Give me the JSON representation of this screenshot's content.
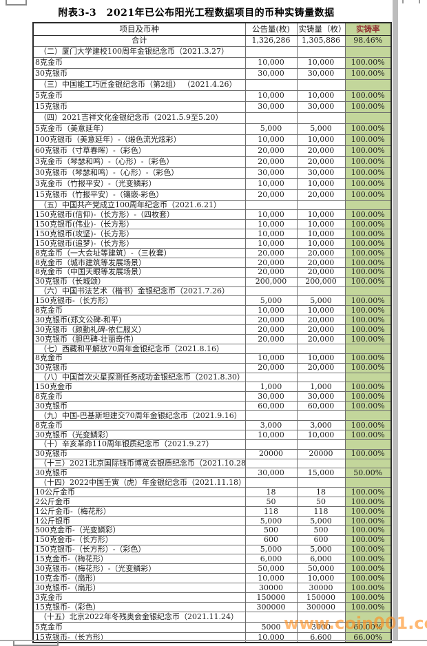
{
  "title": "附表3-3　2021年已公布阳光工程数据项目的币种实铸量数据",
  "watermark": "www.coin001.com",
  "colors": {
    "rate_column_bg": "#c3d69b",
    "rate_header_text": "#953735",
    "watermark_orange": "#ff8f1f"
  },
  "table": {
    "headers": [
      "项目及币种",
      "公告量(枚)",
      "实铸量（枚）",
      "实铸率"
    ],
    "rows": [
      {
        "type": "total",
        "name": "合计",
        "announced": "1,326,286",
        "minted": "1,305,886",
        "rate": "98.46%"
      },
      {
        "type": "section",
        "name": "（二）厦门大学建校100周年金银纪念币（2021.3.27）"
      },
      {
        "type": "data",
        "name": "8克金币",
        "announced": "10,000",
        "minted": "10,000",
        "rate": "100.00%"
      },
      {
        "type": "data",
        "name": "30克银币",
        "announced": "30,000",
        "minted": "30,000",
        "rate": "100.00%"
      },
      {
        "type": "section",
        "name": "（三）中国能工巧匠金银纪念币（第2组） （2021.4.26）"
      },
      {
        "type": "data",
        "name": "5克金币",
        "announced": "10,000",
        "minted": "10,000",
        "rate": "100.00%"
      },
      {
        "type": "data",
        "name": "15克银币",
        "announced": "30,000",
        "minted": "30,000",
        "rate": "100.00%"
      },
      {
        "type": "section",
        "name": "（四）2021吉祥文化金银纪念币（2021.5.9至5.20）"
      },
      {
        "type": "data",
        "name": "5克金币（美意延年）",
        "announced": "5,000",
        "minted": "5,000",
        "rate": "100.00%"
      },
      {
        "type": "data",
        "name": "100克银币（美意延年）-（缎色流光炫彩）",
        "announced": "10,000",
        "minted": "10,000",
        "rate": "100.00%"
      },
      {
        "type": "data",
        "name": "60克银币（寸草春晖）-（彩色）",
        "announced": "20,000",
        "minted": "20,000",
        "rate": "100.00%"
      },
      {
        "type": "data",
        "name": "3克金币（琴瑟和鸣）-（心形）-（彩色）",
        "announced": "20,000",
        "minted": "20,000",
        "rate": "100.00%"
      },
      {
        "type": "data",
        "name": "30克银币（琴瑟和鸣）-（心形）-（彩色）",
        "announced": "30,000",
        "minted": "30,000",
        "rate": "100.00%"
      },
      {
        "type": "data",
        "name": "3克金币（竹报平安）-（光变鳞彩）",
        "announced": "10,000",
        "minted": "10,000",
        "rate": "100.00%"
      },
      {
        "type": "data",
        "name": "15克银币（竹报平安）-（镶嵌-彩色）",
        "announced": "20,000",
        "minted": "20,000",
        "rate": "100.00%"
      },
      {
        "type": "section",
        "name": "（五）中国共产党成立100周年纪念币（2021.6.21）"
      },
      {
        "type": "data",
        "name": "150克银币(信仰)-（长方形）-（四枚套）",
        "announced": "10,000",
        "minted": "10,000",
        "rate": "100.00%"
      },
      {
        "type": "data",
        "name": "150克银币(伟业)-（长方形）",
        "announced": "10,000",
        "minted": "10,000",
        "rate": "100.00%"
      },
      {
        "type": "data",
        "name": "150克银币(攻坚)-（长方形）",
        "announced": "10,000",
        "minted": "10,000",
        "rate": "100.00%"
      },
      {
        "type": "data",
        "name": "150克银币(追梦)-（长方形）",
        "announced": "10,000",
        "minted": "10,000",
        "rate": "100.00%"
      },
      {
        "type": "data",
        "name": "8克金币（一大会址等建筑）-（三枚套）",
        "announced": "20,000",
        "minted": "20,000",
        "rate": "100.00%"
      },
      {
        "type": "data",
        "name": "8克金币（城市建筑等发展场景）",
        "announced": "20,000",
        "minted": "20,000",
        "rate": "100.00%"
      },
      {
        "type": "data",
        "name": "8克金币（中国天眼等发展场景）",
        "announced": "20,000",
        "minted": "20,000",
        "rate": "100.00%"
      },
      {
        "type": "data",
        "name": "30克银币（长城颂）",
        "announced": "200,000",
        "minted": "200,000",
        "rate": "100.00%"
      },
      {
        "type": "section",
        "name": "（六）中国书法艺术（楷书）金银纪念币（2021.7.26）"
      },
      {
        "type": "data",
        "name": "150克银币-（长方形）",
        "announced": "5,000",
        "minted": "5,000",
        "rate": "100.00%"
      },
      {
        "type": "data",
        "name": "8克金币",
        "announced": "10,000",
        "minted": "10,000",
        "rate": "100.00%"
      },
      {
        "type": "data",
        "name": "30克银币(郑文公碑-和平)",
        "announced": "20,000",
        "minted": "20,000",
        "rate": "100.00%"
      },
      {
        "type": "data",
        "name": "30克银币（颜勤礼碑-依仁服义）",
        "announced": "20,000",
        "minted": "20,000",
        "rate": "100.00%"
      },
      {
        "type": "data",
        "name": "30克银币（胆巴碑-壮丽奇伟）",
        "announced": "20,000",
        "minted": "20,000",
        "rate": "100.00%"
      },
      {
        "type": "section",
        "name": "（七）西藏和平解放70周年金银纪念币（2021.8.16）"
      },
      {
        "type": "data",
        "name": "8克金币",
        "announced": "10,000",
        "minted": "10,000",
        "rate": "100.00%"
      },
      {
        "type": "data",
        "name": "30克银币",
        "announced": "20,000",
        "minted": "20,000",
        "rate": "100.00%"
      },
      {
        "type": "section",
        "name": "（八）中国首次火星探测任务成功金银纪念币（2021.8.30）"
      },
      {
        "type": "data",
        "name": "150克金币",
        "announced": "1,000",
        "minted": "1,000",
        "rate": "100.00%"
      },
      {
        "type": "data",
        "name": "8克金币",
        "announced": "30,000",
        "minted": "30,000",
        "rate": "100.00%"
      },
      {
        "type": "data",
        "name": "30克银币",
        "announced": "60,000",
        "minted": "60,000",
        "rate": "100.00%"
      },
      {
        "type": "section",
        "name": "（九）中国-巴基斯坦建交70周年金银纪念币（2021.9.16）"
      },
      {
        "type": "data",
        "name": "8克金币",
        "announced": "3,000",
        "minted": "3,000",
        "rate": "100.00%"
      },
      {
        "type": "data",
        "name": "30克银币（光变鳞彩）",
        "announced": "10,000",
        "minted": "10,000",
        "rate": "100.00%"
      },
      {
        "type": "section",
        "name": "（十）辛亥革命110周年银质纪念币（2021.9.27）"
      },
      {
        "type": "data",
        "name": "30克银币",
        "announced": "20000",
        "minted": "20000",
        "rate": "100.00%"
      },
      {
        "type": "section",
        "name": "（十三）2021北京国际钱币博览会银质纪念币（2021.10.28）"
      },
      {
        "type": "data",
        "name": "30克银币",
        "announced": "30,000",
        "minted": "15,000",
        "rate": "50.00%"
      },
      {
        "type": "section",
        "name": "（十四）2022中国壬寅（虎）年金银纪念币（2021.11.18）"
      },
      {
        "type": "data",
        "name": "10公斤金币",
        "announced": "18",
        "minted": "18",
        "rate": "100.00%"
      },
      {
        "type": "data",
        "name": "2公斤金币",
        "announced": "50",
        "minted": "50",
        "rate": "100.00%"
      },
      {
        "type": "data",
        "name": "1公斤金币-（梅花形）",
        "announced": "118",
        "minted": "118",
        "rate": "100.00%"
      },
      {
        "type": "data",
        "name": "1公斤银币",
        "announced": "5,000",
        "minted": "5,000",
        "rate": "100.00%"
      },
      {
        "type": "data",
        "name": "500克金币-（光变鳞彩）",
        "announced": "500",
        "minted": "500",
        "rate": "100.00%"
      },
      {
        "type": "data",
        "name": "150克金币-（长方形）",
        "announced": "600",
        "minted": "600",
        "rate": "100.00%"
      },
      {
        "type": "data",
        "name": "150克银币-（长方形）-（彩色）",
        "announced": "5,000",
        "minted": "5,000",
        "rate": "100.00%"
      },
      {
        "type": "data",
        "name": "15克金币-（梅花形）",
        "announced": "6,000",
        "minted": "6,000",
        "rate": "100.00%"
      },
      {
        "type": "data",
        "name": "30克银币-（梅花形）-（光变鳞彩）",
        "announced": "50,000",
        "minted": "50,000",
        "rate": "100.00%"
      },
      {
        "type": "data",
        "name": "10克金币-（扇形）",
        "announced": "10,000",
        "minted": "10,000",
        "rate": "100.00%"
      },
      {
        "type": "data",
        "name": "30克银币-（扇形）",
        "announced": "30000",
        "minted": "30000",
        "rate": "100.00%"
      },
      {
        "type": "data",
        "name": "3克金币",
        "announced": "150000",
        "minted": "150000",
        "rate": "100.00%"
      },
      {
        "type": "data",
        "name": "15克银币-（彩色）",
        "announced": "300000",
        "minted": "300000",
        "rate": "100.00%"
      },
      {
        "type": "section",
        "name": "（十五）北京2022年冬残奥会金银纪念币（2021.11.24）"
      },
      {
        "type": "data",
        "name": "5克金币",
        "announced": "5000",
        "minted": "3000",
        "rate": "60.00%"
      },
      {
        "type": "data",
        "name": "15克银币-（长方形）",
        "announced": "10,000",
        "minted": "6,600",
        "rate": "66.00%"
      }
    ]
  }
}
